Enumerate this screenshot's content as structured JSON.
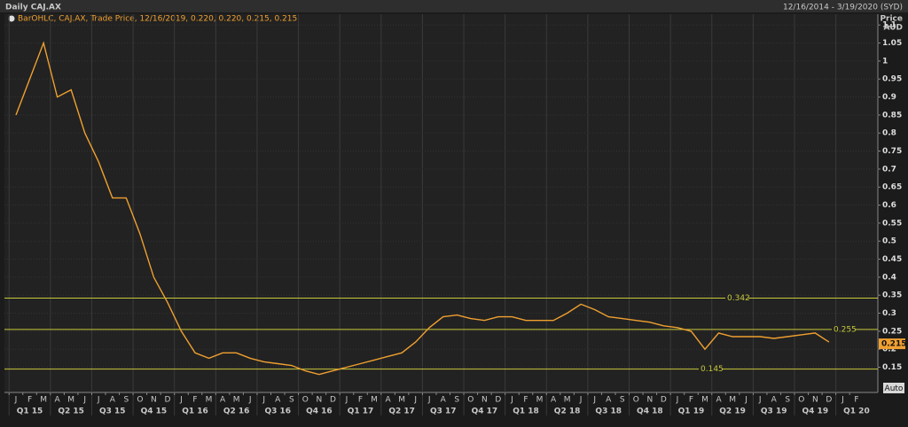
{
  "chart_data": {
    "type": "line",
    "title": "Daily CAJ.AX",
    "date_range": "12/16/2014 - 3/19/2020 (SYD)",
    "ylabel": "Price",
    "yunit": "AUD",
    "categories": [
      "J",
      "F",
      "M",
      "A",
      "M",
      "J",
      "J",
      "A",
      "S",
      "O",
      "N",
      "D",
      "J",
      "F",
      "M",
      "A",
      "M",
      "J",
      "J",
      "A",
      "S",
      "O",
      "N",
      "D",
      "J",
      "F",
      "M",
      "A",
      "M",
      "J",
      "J",
      "A",
      "S",
      "O",
      "N",
      "D",
      "J",
      "F",
      "M",
      "A",
      "M",
      "J",
      "J",
      "A",
      "S",
      "O",
      "N",
      "D",
      "J",
      "F",
      "M",
      "A",
      "M",
      "J",
      "J",
      "A",
      "S",
      "O",
      "N",
      "D",
      "J",
      "F"
    ],
    "quarters": [
      "Q1 15",
      "Q2 15",
      "Q3 15",
      "Q4 15",
      "Q1 16",
      "Q2 16",
      "Q3 16",
      "Q4 16",
      "Q1 17",
      "Q2 17",
      "Q3 17",
      "Q4 17",
      "Q1 18",
      "Q2 18",
      "Q3 18",
      "Q4 18",
      "Q1 19",
      "Q2 19",
      "Q3 19",
      "Q4 19",
      "Q1 20"
    ],
    "series": [
      {
        "name": "BarOHLC, CAJ.AX, Trade Price, 12/16/2019, 0.220, 0.220, 0.215, 0.215",
        "color": "#f0a030",
        "values": [
          0.85,
          0.95,
          1.05,
          0.9,
          0.92,
          0.8,
          0.72,
          0.62,
          0.62,
          0.52,
          0.4,
          0.33,
          0.25,
          0.19,
          0.175,
          0.19,
          0.19,
          0.175,
          0.165,
          0.16,
          0.155,
          0.14,
          0.13,
          0.14,
          0.15,
          0.16,
          0.17,
          0.18,
          0.19,
          0.22,
          0.26,
          0.29,
          0.295,
          0.285,
          0.28,
          0.29,
          0.29,
          0.28,
          0.28,
          0.28,
          0.3,
          0.325,
          0.31,
          0.29,
          0.285,
          0.28,
          0.275,
          0.265,
          0.26,
          0.25,
          0.2,
          0.245,
          0.235,
          0.235,
          0.235,
          0.23,
          0.235,
          0.24,
          0.245,
          0.22,
          null,
          null
        ]
      }
    ],
    "levels": [
      0.342,
      0.255,
      0.145
    ],
    "level_color": "#c8c83c",
    "last_price": 0.215,
    "auto_button": "Auto",
    "ylim": [
      0.08,
      1.13
    ],
    "yticks": [
      0.15,
      0.2,
      0.25,
      0.3,
      0.35,
      0.4,
      0.45,
      0.5,
      0.55,
      0.6,
      0.65,
      0.7,
      0.75,
      0.8,
      0.85,
      0.9,
      0.95,
      1,
      1.05,
      1.1
    ],
    "grid": true
  }
}
